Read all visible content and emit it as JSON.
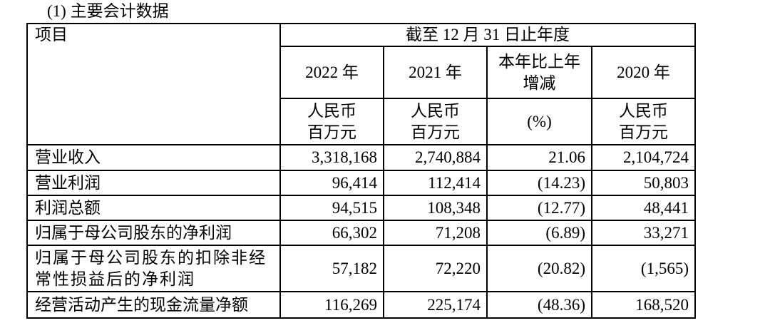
{
  "title": "(1) 主要会计数据",
  "header": {
    "item_label": "项目",
    "period_label": "截至 12 月 31 日止年度",
    "columns": [
      "2022 年",
      "2021 年",
      "本年比上年增减",
      "2020 年"
    ],
    "units": [
      "人民币百万元",
      "人民币百万元",
      "(%)",
      "人民币百万元"
    ]
  },
  "rows": [
    {
      "label": "营业收入",
      "values": [
        "3,318,168",
        "2,740,884",
        "21.06",
        "2,104,724"
      ]
    },
    {
      "label": "营业利润",
      "values": [
        "96,414",
        "112,414",
        "(14.23)",
        "50,803"
      ]
    },
    {
      "label": "利润总额",
      "values": [
        "94,515",
        "108,348",
        "(12.77)",
        "48,441"
      ]
    },
    {
      "label": "归属于母公司股东的净利润",
      "values": [
        "66,302",
        "71,208",
        "(6.89)",
        "33,271"
      ]
    },
    {
      "label": "归属于母公司股东的扣除非经常性损益后的净利润",
      "values": [
        "57,182",
        "72,220",
        "(20.82)",
        "(1,565)"
      ]
    },
    {
      "label": "经营活动产生的现金流量净额",
      "values": [
        "116,269",
        "225,174",
        "(48.36)",
        "168,520"
      ]
    }
  ]
}
